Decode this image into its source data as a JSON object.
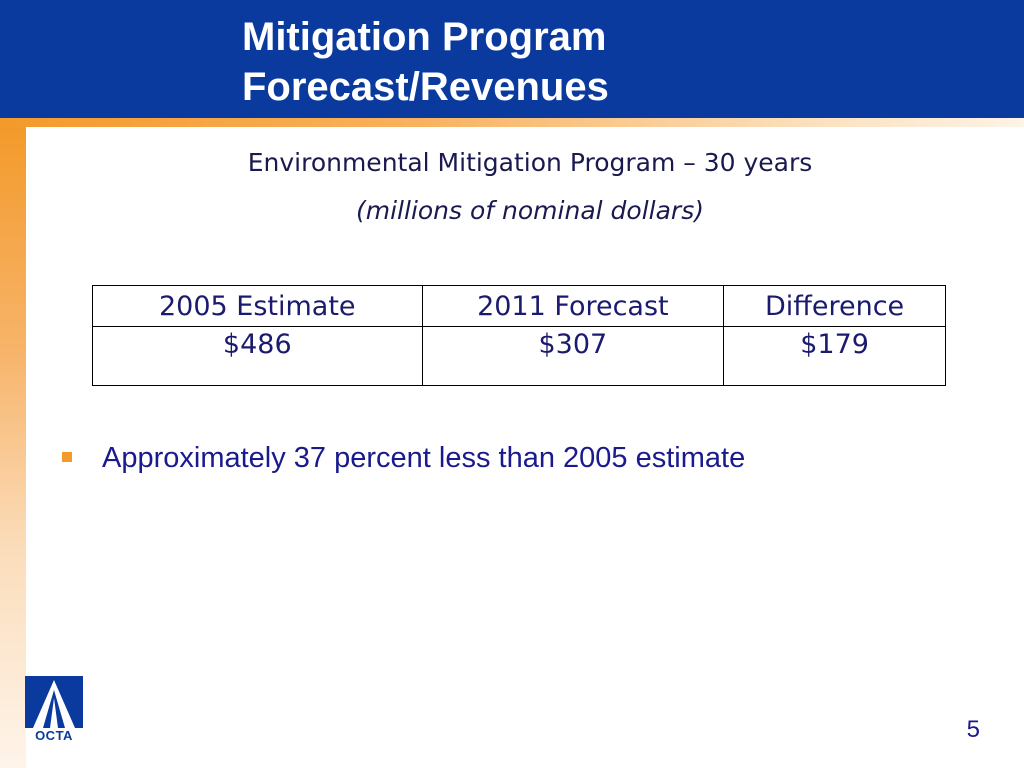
{
  "slide": {
    "title_line1": "Mitigation Program",
    "title_line2": "Forecast/Revenues",
    "subtitle_line1": "Environmental Mitigation Program – 30 years",
    "subtitle_line2": "(millions of nominal dollars)",
    "table": {
      "headers": [
        "2005 Estimate",
        "2011 Forecast",
        "Difference"
      ],
      "rows": [
        [
          "$486",
          "$307",
          "$179"
        ]
      ]
    },
    "bullets": [
      "Approximately 37 percent less than 2005 estimate"
    ],
    "page_number": "5",
    "logo": {
      "text": "OCTA",
      "icon": "octa-logo-icon"
    }
  },
  "colors": {
    "header_blue": "#0a3a9e",
    "accent_orange": "#f39a2b",
    "text_navy": "#1a1a6e"
  }
}
